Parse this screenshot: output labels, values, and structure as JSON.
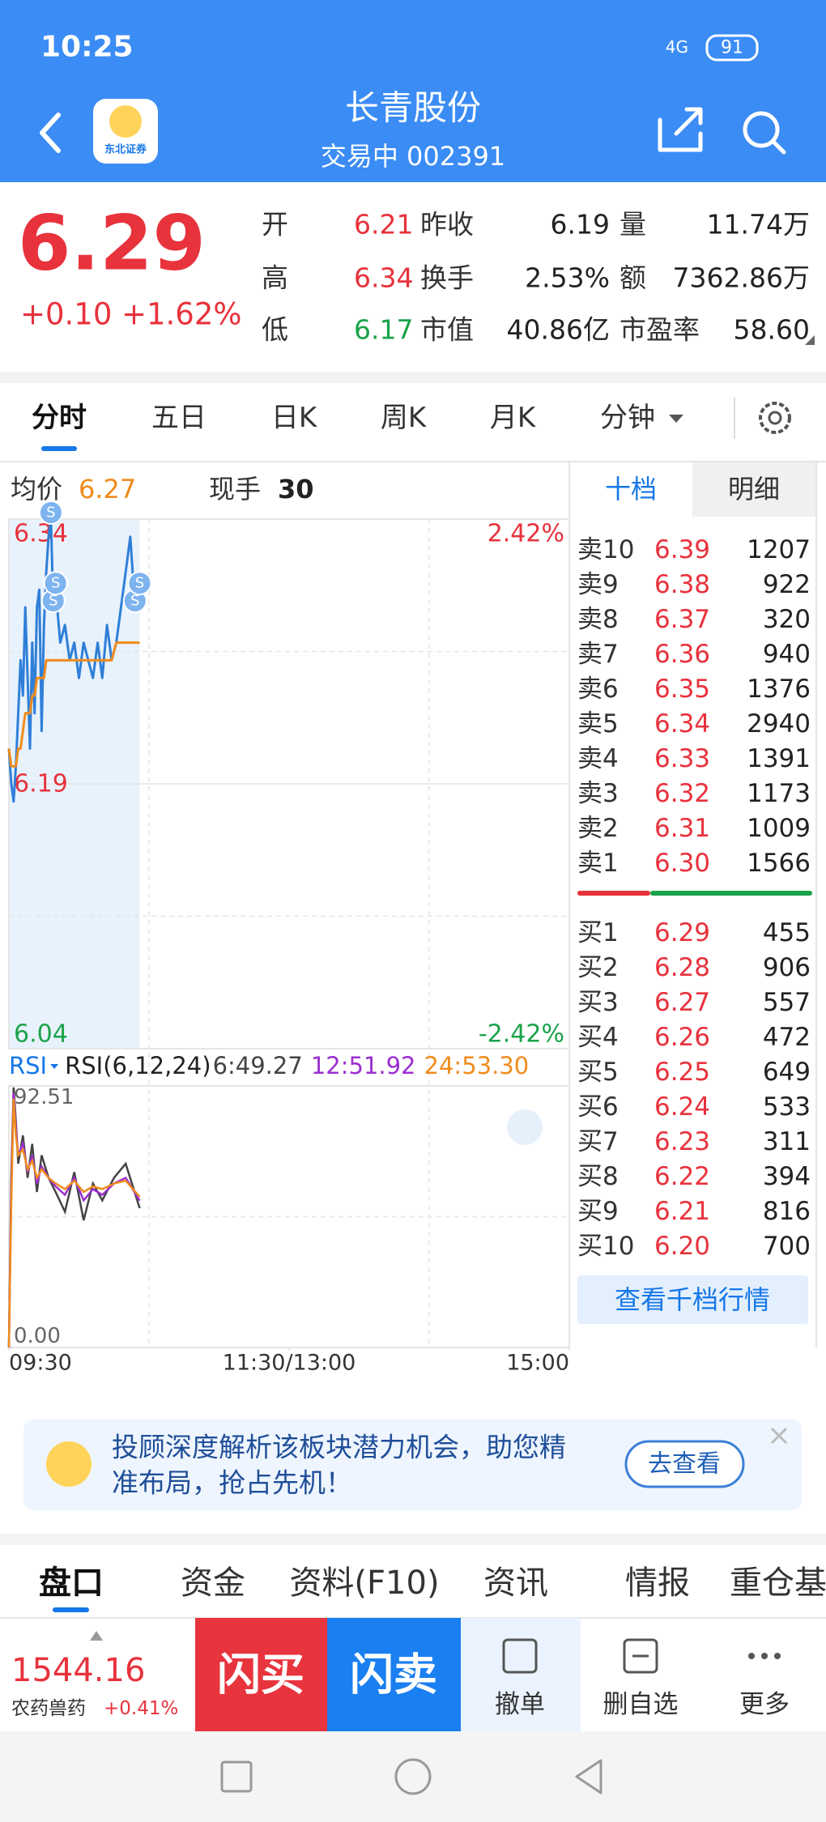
{
  "status_bar": {
    "time": "10:25",
    "network": "4G",
    "battery": "91"
  },
  "header": {
    "title": "长青股份",
    "subtitle": "交易中 002391",
    "logo_text": "东北证券"
  },
  "quote": {
    "price": "6.29",
    "change": "+0.10",
    "change_pct": "+1.62%",
    "stats": [
      {
        "label": "开",
        "value": "6.21",
        "color": "#e8323c"
      },
      {
        "label": "昨收",
        "value": "6.19",
        "color": "#222222"
      },
      {
        "label": "量",
        "value": "11.74万",
        "color": "#222222"
      },
      {
        "label": "高",
        "value": "6.34",
        "color": "#e8323c"
      },
      {
        "label": "换手",
        "value": "2.53%",
        "color": "#222222"
      },
      {
        "label": "额",
        "value": "7362.86万",
        "color": "#222222"
      },
      {
        "label": "低",
        "value": "6.17",
        "color": "#1aa34a"
      },
      {
        "label": "市值",
        "value": "40.86亿",
        "color": "#222222"
      },
      {
        "label": "市盈率",
        "value": "58.60",
        "color": "#222222"
      }
    ]
  },
  "tabs": {
    "items": [
      "分时",
      "五日",
      "日K",
      "周K",
      "月K",
      "分钟"
    ],
    "active": 0
  },
  "intraday_info": {
    "avg_label": "均价",
    "avg_value": "6.27",
    "vol_label": "现手",
    "vol_value": "30"
  },
  "intraday_chart": {
    "type": "line",
    "xlim": [
      0,
      240
    ],
    "xticks": [
      {
        "value": 0,
        "label": "09:30"
      },
      {
        "value": 120,
        "label": "11:30/13:00"
      },
      {
        "value": 240,
        "label": "15:00"
      }
    ],
    "ylim": [
      6.04,
      6.34
    ],
    "yticks": [
      6.34,
      6.19,
      6.04
    ],
    "y2lim": [
      -2.42,
      2.42
    ],
    "y2ticks": [
      {
        "value": 2.42,
        "label": "2.42%"
      },
      {
        "value": -2.42,
        "label": "-2.42%"
      }
    ],
    "x": [
      0,
      1,
      2,
      3,
      4,
      5,
      6,
      7,
      8,
      9,
      10,
      11,
      12,
      13,
      14,
      15,
      16,
      17,
      18,
      19,
      20,
      22,
      24,
      26,
      28,
      30,
      32,
      34,
      36,
      38,
      40,
      42,
      44,
      46,
      48,
      50,
      52,
      54,
      56
    ],
    "series": [
      {
        "color": "#2f7fd8",
        "values": [
          6.21,
          6.19,
          6.18,
          6.2,
          6.23,
          6.26,
          6.24,
          6.29,
          6.25,
          6.21,
          6.27,
          6.23,
          6.29,
          6.3,
          6.22,
          6.28,
          6.31,
          6.33,
          6.34,
          6.29,
          6.3,
          6.27,
          6.28,
          6.26,
          6.27,
          6.25,
          6.27,
          6.26,
          6.25,
          6.27,
          6.25,
          6.28,
          6.26,
          6.27,
          6.29,
          6.31,
          6.33,
          6.29,
          6.3
        ]
      },
      {
        "color": "#f08c1c",
        "values": [
          6.21,
          6.2,
          6.2,
          6.2,
          6.21,
          6.21,
          6.22,
          6.23,
          6.23,
          6.23,
          6.24,
          6.24,
          6.25,
          6.25,
          6.25,
          6.25,
          6.26,
          6.26,
          6.26,
          6.26,
          6.26,
          6.26,
          6.26,
          6.26,
          6.26,
          6.26,
          6.26,
          6.26,
          6.26,
          6.26,
          6.26,
          6.26,
          6.26,
          6.27,
          6.27,
          6.27,
          6.27,
          6.27,
          6.27
        ]
      }
    ],
    "signals": {
      "label": "S",
      "x": [
        18,
        19,
        20,
        54,
        56
      ]
    }
  },
  "rsi_chart": {
    "type": "line",
    "indicator": "RSI",
    "title": "RSI(6,12,24)",
    "xlim": [
      0,
      240
    ],
    "ylim": [
      0,
      92.51
    ],
    "yticks": [
      {
        "value": 92.51,
        "label": "92.51"
      },
      {
        "value": 0,
        "label": "0.00"
      }
    ],
    "x": [
      0,
      1,
      2,
      3,
      4,
      6,
      8,
      10,
      12,
      14,
      17,
      20,
      24,
      28,
      32,
      36,
      40,
      45,
      50,
      56
    ],
    "series": [
      {
        "name": "6:49.27",
        "color": "#444444",
        "values": [
          0,
          60,
          92,
          80,
          65,
          75,
          60,
          72,
          55,
          68,
          60,
          55,
          48,
          62,
          45,
          58,
          52,
          60,
          65,
          49.27
        ]
      },
      {
        "name": "12:51.92",
        "color": "#9b2fd0",
        "values": [
          0,
          55,
          90,
          78,
          68,
          72,
          62,
          68,
          58,
          64,
          60,
          57,
          54,
          60,
          52,
          56,
          54,
          58,
          60,
          51.92
        ]
      },
      {
        "name": "24:53.30",
        "color": "#f08c1c",
        "values": [
          0,
          50,
          88,
          75,
          68,
          70,
          63,
          66,
          60,
          63,
          60,
          58,
          56,
          59,
          55,
          57,
          56,
          58,
          59,
          53.3
        ]
      }
    ]
  },
  "order_book": {
    "tabs": [
      "十档",
      "明细"
    ],
    "active": 0,
    "asks": [
      {
        "label": "卖10",
        "price": "6.39",
        "volume": 1207
      },
      {
        "label": "卖9",
        "price": "6.38",
        "volume": 922
      },
      {
        "label": "卖8",
        "price": "6.37",
        "volume": 320
      },
      {
        "label": "卖7",
        "price": "6.36",
        "volume": 940
      },
      {
        "label": "卖6",
        "price": "6.35",
        "volume": 1376
      },
      {
        "label": "卖5",
        "price": "6.34",
        "volume": 2940
      },
      {
        "label": "卖4",
        "price": "6.33",
        "volume": 1391
      },
      {
        "label": "卖3",
        "price": "6.32",
        "volume": 1173
      },
      {
        "label": "卖2",
        "price": "6.31",
        "volume": 1009
      },
      {
        "label": "卖1",
        "price": "6.30",
        "volume": 1566
      }
    ],
    "bids": [
      {
        "label": "买1",
        "price": "6.29",
        "volume": 455
      },
      {
        "label": "买2",
        "price": "6.28",
        "volume": 906
      },
      {
        "label": "买3",
        "price": "6.27",
        "volume": 557
      },
      {
        "label": "买4",
        "price": "6.26",
        "volume": 472
      },
      {
        "label": "买5",
        "price": "6.25",
        "volume": 649
      },
      {
        "label": "买6",
        "price": "6.24",
        "volume": 533
      },
      {
        "label": "买7",
        "price": "6.23",
        "volume": 311
      },
      {
        "label": "买8",
        "price": "6.22",
        "volume": 394
      },
      {
        "label": "买9",
        "price": "6.21",
        "volume": 816
      },
      {
        "label": "买10",
        "price": "6.20",
        "volume": 700
      }
    ],
    "button": "查看千档行情"
  },
  "banner": {
    "line1": "投顾深度解析该板块潜力机会，助您精",
    "line2": "准布局，抢占先机！",
    "button": "去查看"
  },
  "bottom_tabs": {
    "items": [
      "盘口",
      "资金",
      "资料(F10)",
      "资讯",
      "情报",
      "重仓基"
    ],
    "active": 0
  },
  "bottom_bar": {
    "index_value": "1544.16",
    "index_name": "农药兽药",
    "index_change": "+0.41%",
    "buy": "闪买",
    "sell": "闪卖",
    "actions": [
      "撤单",
      "删自选",
      "更多"
    ]
  }
}
